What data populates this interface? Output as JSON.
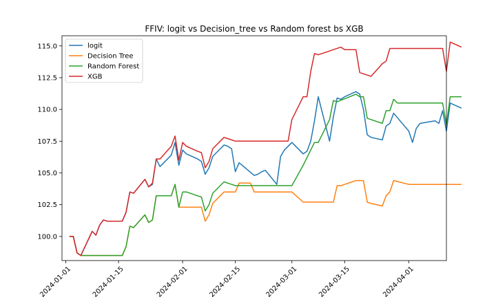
{
  "chart_data": {
    "type": "line",
    "title": "FFIV: logit vs Decision_tree vs Random forest bs XGB",
    "xlabel": "",
    "ylabel": "",
    "xlim": [
      "2023-12-31",
      "2024-04-11"
    ],
    "ylim": [
      98.1,
      115.8
    ],
    "x_ticks": [
      "2024-01-01",
      "2024-01-15",
      "2024-02-01",
      "2024-02-15",
      "2024-03-01",
      "2024-03-15",
      "2024-04-01"
    ],
    "y_ticks": [
      "100.0",
      "102.5",
      "105.0",
      "107.5",
      "110.0",
      "112.5",
      "115.0"
    ],
    "grid": false,
    "legend_position": "upper-left",
    "series": [
      {
        "name": "logit",
        "color": "#1f77b4",
        "points": [
          [
            "2024-01-02",
            100.0
          ],
          [
            "2024-01-03",
            100.0
          ],
          [
            "2024-01-04",
            98.7
          ],
          [
            "2024-01-05",
            98.5
          ],
          [
            "2024-01-08",
            100.4
          ],
          [
            "2024-01-09",
            100.1
          ],
          [
            "2024-01-10",
            100.9
          ],
          [
            "2024-01-11",
            101.3
          ],
          [
            "2024-01-12",
            101.2
          ],
          [
            "2024-01-16",
            101.2
          ],
          [
            "2024-01-17",
            101.9
          ],
          [
            "2024-01-18",
            103.5
          ],
          [
            "2024-01-19",
            103.4
          ],
          [
            "2024-01-22",
            104.5
          ],
          [
            "2024-01-23",
            103.9
          ],
          [
            "2024-01-24",
            104.1
          ],
          [
            "2024-01-25",
            106.1
          ],
          [
            "2024-01-26",
            105.5
          ],
          [
            "2024-01-29",
            106.4
          ],
          [
            "2024-01-30",
            107.4
          ],
          [
            "2024-01-31",
            105.6
          ],
          [
            "2024-02-01",
            106.8
          ],
          [
            "2024-02-02",
            106.5
          ],
          [
            "2024-02-05",
            106.1
          ],
          [
            "2024-02-06",
            105.9
          ],
          [
            "2024-02-07",
            104.9
          ],
          [
            "2024-02-08",
            105.4
          ],
          [
            "2024-02-09",
            106.3
          ],
          [
            "2024-02-12",
            107.2
          ],
          [
            "2024-02-13",
            107.1
          ],
          [
            "2024-02-14",
            106.9
          ],
          [
            "2024-02-15",
            105.1
          ],
          [
            "2024-02-16",
            105.8
          ],
          [
            "2024-02-20",
            104.8
          ],
          [
            "2024-02-21",
            104.9
          ],
          [
            "2024-02-22",
            105.1
          ],
          [
            "2024-02-23",
            105.2
          ],
          [
            "2024-02-26",
            104.1
          ],
          [
            "2024-02-27",
            106.3
          ],
          [
            "2024-02-28",
            106.8
          ],
          [
            "2024-03-01",
            107.4
          ],
          [
            "2024-03-04",
            106.5
          ],
          [
            "2024-03-05",
            106.7
          ],
          [
            "2024-03-06",
            107.5
          ],
          [
            "2024-03-07",
            109.1
          ],
          [
            "2024-03-08",
            111.0
          ],
          [
            "2024-03-11",
            107.5
          ],
          [
            "2024-03-12",
            109.4
          ],
          [
            "2024-03-13",
            110.9
          ],
          [
            "2024-03-14",
            110.8
          ],
          [
            "2024-03-15",
            111.0
          ],
          [
            "2024-03-18",
            111.4
          ],
          [
            "2024-03-19",
            111.2
          ],
          [
            "2024-03-20",
            110.0
          ],
          [
            "2024-03-21",
            108.0
          ],
          [
            "2024-03-22",
            107.8
          ],
          [
            "2024-03-25",
            107.6
          ],
          [
            "2024-03-26",
            108.7
          ],
          [
            "2024-03-27",
            108.9
          ],
          [
            "2024-03-28",
            109.7
          ],
          [
            "2024-04-01",
            108.3
          ],
          [
            "2024-04-02",
            107.4
          ],
          [
            "2024-04-03",
            108.5
          ],
          [
            "2024-04-04",
            108.9
          ],
          [
            "2024-04-08",
            109.1
          ],
          [
            "2024-04-09",
            108.9
          ],
          [
            "2024-04-10",
            109.9
          ],
          [
            "2024-04-11",
            108.3
          ],
          [
            "2024-04-12",
            110.5
          ],
          [
            "2024-04-15",
            110.1
          ]
        ]
      },
      {
        "name": "Decision Tree",
        "color": "#ff7f0e",
        "points": [
          [
            "2024-01-02",
            100.0
          ],
          [
            "2024-01-03",
            100.0
          ],
          [
            "2024-01-04",
            98.7
          ],
          [
            "2024-01-05",
            98.5
          ],
          [
            "2024-01-16",
            98.5
          ],
          [
            "2024-01-17",
            99.2
          ],
          [
            "2024-01-18",
            100.8
          ],
          [
            "2024-01-19",
            100.7
          ],
          [
            "2024-01-22",
            101.7
          ],
          [
            "2024-01-23",
            101.1
          ],
          [
            "2024-01-24",
            101.3
          ],
          [
            "2024-01-25",
            103.2
          ],
          [
            "2024-01-29",
            103.2
          ],
          [
            "2024-01-30",
            104.1
          ],
          [
            "2024-01-31",
            102.3
          ],
          [
            "2024-02-06",
            102.3
          ],
          [
            "2024-02-07",
            101.2
          ],
          [
            "2024-02-08",
            101.7
          ],
          [
            "2024-02-09",
            102.6
          ],
          [
            "2024-02-12",
            103.5
          ],
          [
            "2024-02-15",
            103.5
          ],
          [
            "2024-02-16",
            104.2
          ],
          [
            "2024-02-19",
            104.2
          ],
          [
            "2024-02-20",
            103.5
          ],
          [
            "2024-03-01",
            103.5
          ],
          [
            "2024-03-04",
            102.7
          ],
          [
            "2024-03-08",
            102.7
          ],
          [
            "2024-03-11",
            102.7
          ],
          [
            "2024-03-12",
            102.7
          ],
          [
            "2024-03-13",
            104.0
          ],
          [
            "2024-03-14",
            104.0
          ],
          [
            "2024-03-15",
            104.1
          ],
          [
            "2024-03-18",
            104.4
          ],
          [
            "2024-03-19",
            104.4
          ],
          [
            "2024-03-20",
            104.4
          ],
          [
            "2024-03-21",
            102.7
          ],
          [
            "2024-03-22",
            102.6
          ],
          [
            "2024-03-25",
            102.4
          ],
          [
            "2024-03-26",
            103.2
          ],
          [
            "2024-03-27",
            103.5
          ],
          [
            "2024-03-28",
            104.4
          ],
          [
            "2024-04-01",
            104.1
          ],
          [
            "2024-04-15",
            104.1
          ]
        ]
      },
      {
        "name": "Random Forest",
        "color": "#2ca02c",
        "points": [
          [
            "2024-01-02",
            100.0
          ],
          [
            "2024-01-03",
            100.0
          ],
          [
            "2024-01-04",
            98.7
          ],
          [
            "2024-01-05",
            98.5
          ],
          [
            "2024-01-16",
            98.5
          ],
          [
            "2024-01-17",
            99.2
          ],
          [
            "2024-01-18",
            100.8
          ],
          [
            "2024-01-19",
            100.7
          ],
          [
            "2024-01-22",
            101.7
          ],
          [
            "2024-01-23",
            101.1
          ],
          [
            "2024-01-24",
            101.3
          ],
          [
            "2024-01-25",
            103.2
          ],
          [
            "2024-01-29",
            103.2
          ],
          [
            "2024-01-30",
            104.1
          ],
          [
            "2024-01-31",
            102.3
          ],
          [
            "2024-02-01",
            103.5
          ],
          [
            "2024-02-02",
            103.5
          ],
          [
            "2024-02-05",
            103.2
          ],
          [
            "2024-02-06",
            103.1
          ],
          [
            "2024-02-07",
            102.0
          ],
          [
            "2024-02-08",
            102.5
          ],
          [
            "2024-02-09",
            103.4
          ],
          [
            "2024-02-12",
            104.3
          ],
          [
            "2024-02-14",
            104.1
          ],
          [
            "2024-02-15",
            104.0
          ],
          [
            "2024-03-01",
            104.0
          ],
          [
            "2024-03-04",
            105.6
          ],
          [
            "2024-03-07",
            107.4
          ],
          [
            "2024-03-08",
            107.4
          ],
          [
            "2024-03-11",
            109.2
          ],
          [
            "2024-03-12",
            110.7
          ],
          [
            "2024-03-13",
            110.6
          ],
          [
            "2024-03-18",
            111.2
          ],
          [
            "2024-03-19",
            111.0
          ],
          [
            "2024-03-20",
            111.0
          ],
          [
            "2024-03-21",
            109.3
          ],
          [
            "2024-03-25",
            108.9
          ],
          [
            "2024-03-26",
            109.9
          ],
          [
            "2024-03-27",
            109.9
          ],
          [
            "2024-03-28",
            110.8
          ],
          [
            "2024-03-29",
            110.5
          ],
          [
            "2024-04-10",
            110.5
          ],
          [
            "2024-04-11",
            108.8
          ],
          [
            "2024-04-12",
            111.0
          ],
          [
            "2024-04-15",
            111.0
          ]
        ]
      },
      {
        "name": "XGB",
        "color": "#d62728",
        "points": [
          [
            "2024-01-02",
            100.0
          ],
          [
            "2024-01-03",
            100.0
          ],
          [
            "2024-01-04",
            98.7
          ],
          [
            "2024-01-05",
            98.5
          ],
          [
            "2024-01-08",
            100.4
          ],
          [
            "2024-01-09",
            100.1
          ],
          [
            "2024-01-10",
            100.9
          ],
          [
            "2024-01-11",
            101.3
          ],
          [
            "2024-01-12",
            101.2
          ],
          [
            "2024-01-16",
            101.2
          ],
          [
            "2024-01-17",
            101.9
          ],
          [
            "2024-01-18",
            103.5
          ],
          [
            "2024-01-19",
            103.4
          ],
          [
            "2024-01-22",
            104.5
          ],
          [
            "2024-01-23",
            103.9
          ],
          [
            "2024-01-24",
            104.2
          ],
          [
            "2024-01-25",
            106.1
          ],
          [
            "2024-01-26",
            106.1
          ],
          [
            "2024-01-29",
            107.1
          ],
          [
            "2024-01-30",
            107.9
          ],
          [
            "2024-01-31",
            106.0
          ],
          [
            "2024-02-01",
            107.4
          ],
          [
            "2024-02-02",
            107.1
          ],
          [
            "2024-02-05",
            106.7
          ],
          [
            "2024-02-06",
            106.6
          ],
          [
            "2024-02-07",
            105.4
          ],
          [
            "2024-02-08",
            105.9
          ],
          [
            "2024-02-09",
            106.9
          ],
          [
            "2024-02-12",
            107.8
          ],
          [
            "2024-02-13",
            107.7
          ],
          [
            "2024-02-15",
            107.5
          ],
          [
            "2024-02-29",
            107.5
          ],
          [
            "2024-03-01",
            109.2
          ],
          [
            "2024-03-04",
            111.0
          ],
          [
            "2024-03-05",
            111.0
          ],
          [
            "2024-03-06",
            113.0
          ],
          [
            "2024-03-07",
            114.4
          ],
          [
            "2024-03-08",
            114.3
          ],
          [
            "2024-03-14",
            114.9
          ],
          [
            "2024-03-15",
            114.7
          ],
          [
            "2024-03-18",
            114.7
          ],
          [
            "2024-03-19",
            112.9
          ],
          [
            "2024-03-22",
            112.6
          ],
          [
            "2024-03-25",
            113.6
          ],
          [
            "2024-03-26",
            113.8
          ],
          [
            "2024-03-27",
            114.8
          ],
          [
            "2024-04-01",
            114.8
          ],
          [
            "2024-04-10",
            114.8
          ],
          [
            "2024-04-11",
            113.0
          ],
          [
            "2024-04-12",
            115.3
          ],
          [
            "2024-04-15",
            114.9
          ]
        ]
      }
    ]
  }
}
